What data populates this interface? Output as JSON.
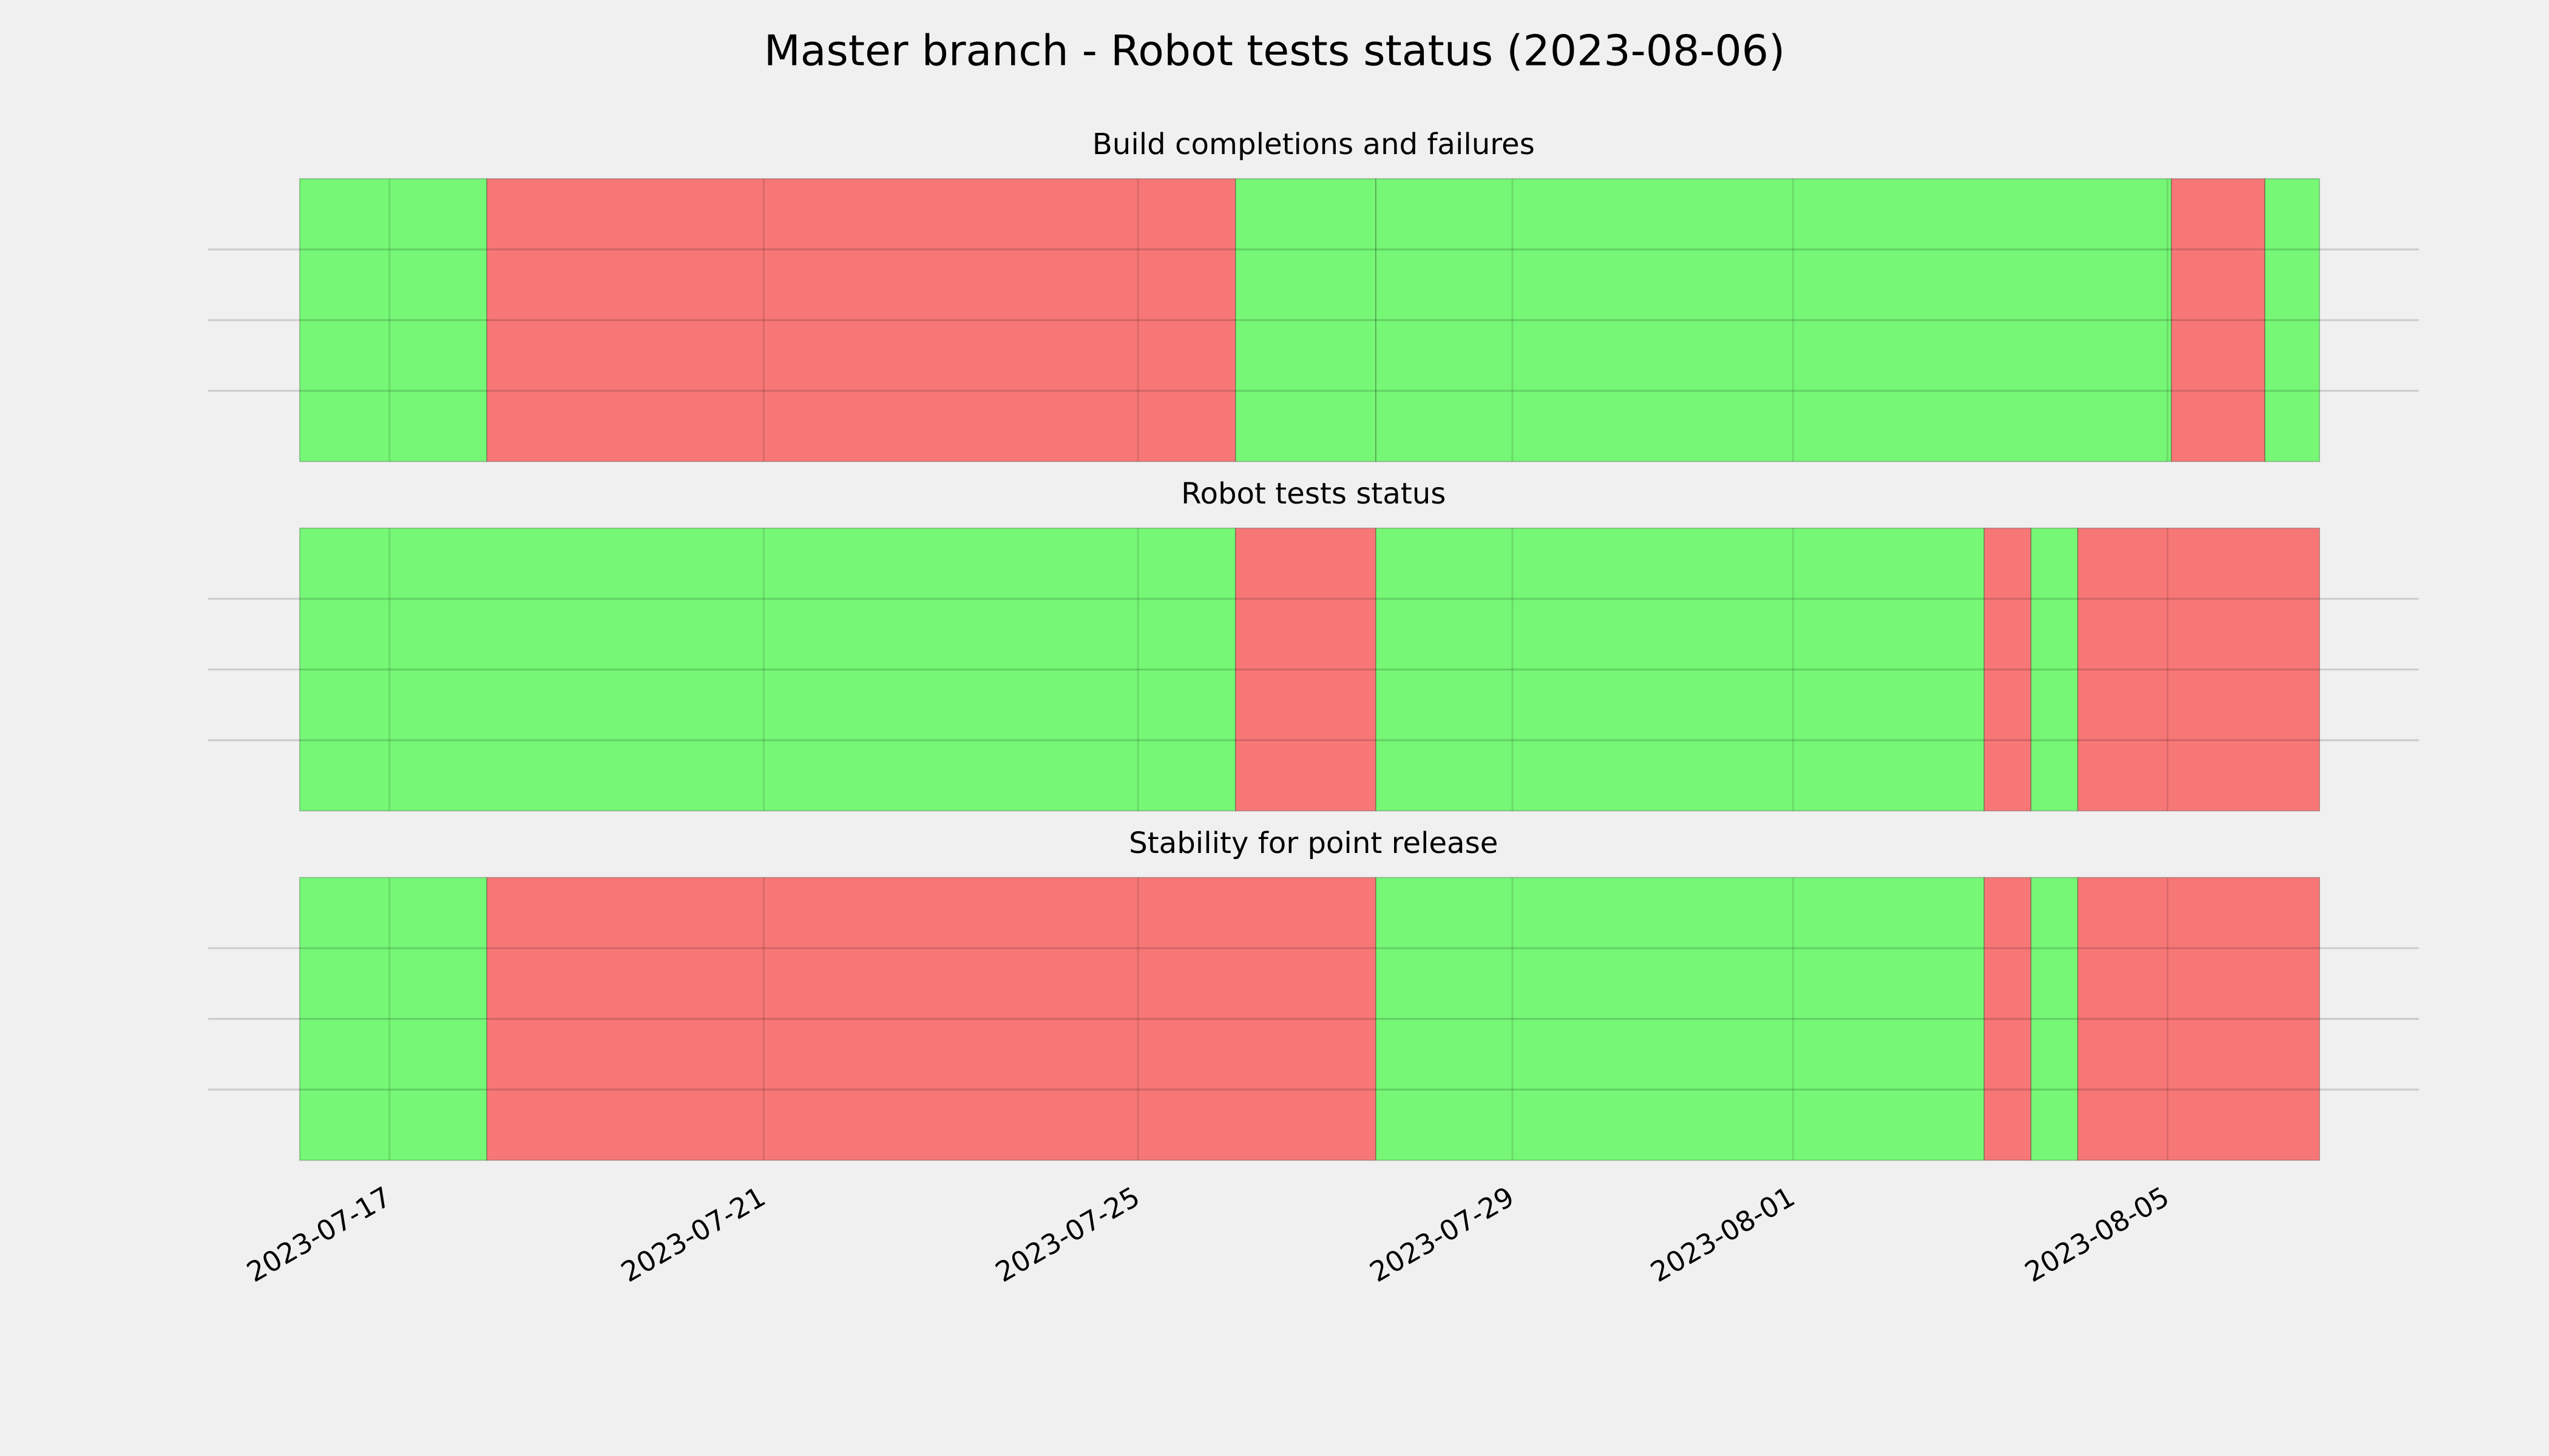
{
  "title": "Master branch - Robot tests status (2023-08-06)",
  "chart_data": [
    {
      "type": "span",
      "title": "Build completions and failures",
      "x": [
        "2023-07-16T01:00",
        "2023-07-18T01:00",
        "2023-07-26T01:00",
        "2023-07-27T13:00",
        "2023-08-05T01:00",
        "2023-08-06T01:00",
        "2023-08-06T15:00"
      ],
      "colors": [
        "#76f776",
        "#f77777",
        "#76f776",
        "#76f776",
        "#f77777",
        "#76f776"
      ],
      "xlim": [
        "2023-07-15T01:30",
        "2023-08-07T16:30"
      ],
      "xticks": [
        "2023-07-17",
        "2023-07-21",
        "2023-07-25",
        "2023-07-29",
        "2023-08-01",
        "2023-08-05"
      ],
      "ylim": [
        0,
        1
      ],
      "yticks": [
        0.25,
        0.5,
        0.75
      ],
      "grid": true
    },
    {
      "type": "span",
      "title": "Robot tests status",
      "x": [
        "2023-07-16T01:00",
        "2023-07-26T01:00",
        "2023-07-27T13:00",
        "2023-08-03T01:00",
        "2023-08-03T13:00",
        "2023-08-04T01:00",
        "2023-08-06T15:00"
      ],
      "colors": [
        "#76f776",
        "#f77777",
        "#76f776",
        "#f77777",
        "#76f776",
        "#f77777"
      ],
      "xlim": [
        "2023-07-15T01:30",
        "2023-08-07T16:30"
      ],
      "xticks": [
        "2023-07-17",
        "2023-07-21",
        "2023-07-25",
        "2023-07-29",
        "2023-08-01",
        "2023-08-05"
      ],
      "ylim": [
        0,
        1
      ],
      "yticks": [
        0.25,
        0.5,
        0.75
      ],
      "grid": true
    },
    {
      "type": "span",
      "title": "Stability for point release",
      "x": [
        "2023-07-16T01:00",
        "2023-07-18T01:00",
        "2023-07-27T13:00",
        "2023-08-03T01:00",
        "2023-08-03T13:00",
        "2023-08-04T01:00",
        "2023-08-06T15:00"
      ],
      "colors": [
        "#76f776",
        "#f77777",
        "#76f776",
        "#f77777",
        "#76f776",
        "#f77777"
      ],
      "xlim": [
        "2023-07-15T01:30",
        "2023-08-07T16:30"
      ],
      "xticks": [
        "2023-07-17",
        "2023-07-21",
        "2023-07-25",
        "2023-07-29",
        "2023-08-01",
        "2023-08-05"
      ],
      "ylim": [
        0,
        1
      ],
      "yticks": [
        0.25,
        0.5,
        0.75
      ],
      "grid": true
    }
  ]
}
